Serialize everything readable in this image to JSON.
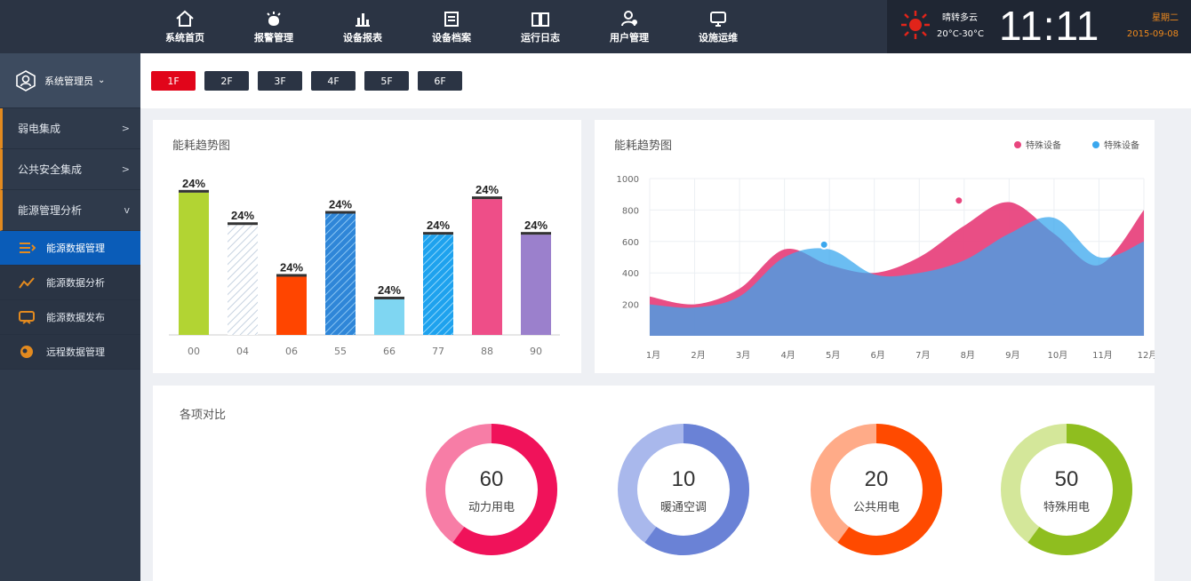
{
  "topnav": [
    {
      "label": "系统首页",
      "icon": "home-icon"
    },
    {
      "label": "报警管理",
      "icon": "alarm-icon"
    },
    {
      "label": "设备报表",
      "icon": "report-icon"
    },
    {
      "label": "设备档案",
      "icon": "archive-icon"
    },
    {
      "label": "运行日志",
      "icon": "log-icon"
    },
    {
      "label": "用户管理",
      "icon": "user-icon"
    },
    {
      "label": "设施运维",
      "icon": "maintenance-icon"
    }
  ],
  "weather": {
    "desc": "晴转多云",
    "temp": "20°C-30°C",
    "icon": "sun-icon"
  },
  "clock": {
    "time": "11:11",
    "weekday": "星期二",
    "date": "2015-09-08"
  },
  "sidebar": {
    "user": "系统管理员",
    "menu": [
      {
        "label": "弱电集成",
        "chevron": ">"
      },
      {
        "label": "公共安全集成",
        "chevron": ">"
      },
      {
        "label": "能源管理分析",
        "chevron": "v"
      }
    ],
    "sub": [
      {
        "label": "能源数据管理",
        "icon": "data-manage-icon"
      },
      {
        "label": "能源数据分析",
        "icon": "analysis-icon"
      },
      {
        "label": "能源数据发布",
        "icon": "publish-icon"
      },
      {
        "label": "远程数据管理",
        "icon": "remote-icon"
      }
    ]
  },
  "floors": [
    "1F",
    "2F",
    "3F",
    "4F",
    "5F",
    "6F"
  ],
  "bar_panel": {
    "title": "能耗趋势图"
  },
  "line_panel": {
    "title": "能耗趋势图",
    "legend": [
      "特殊设备",
      "特殊设备"
    ]
  },
  "compare_panel": {
    "title": "各项对比"
  },
  "colors": {
    "accent": "#e1051a",
    "nav": "#2b3444",
    "active_blue": "#0a5cb8"
  },
  "chart_data": [
    {
      "type": "bar",
      "title": "能耗趋势图",
      "categories": [
        "00",
        "04",
        "06",
        "55",
        "66",
        "77",
        "88",
        "90"
      ],
      "values": [
        88,
        68,
        36,
        75,
        22,
        62,
        84,
        62
      ],
      "data_labels": [
        "24%",
        "24%",
        "24%",
        "24%",
        "24%",
        "24%",
        "24%",
        "24%"
      ],
      "colors": [
        "#b2d433",
        "#dfe7f0",
        "#ff4500",
        "#3b8ee0",
        "#7fd6f2",
        "#2da4ee",
        "#ee4e88",
        "#9b80cc"
      ],
      "patterns": [
        "solid",
        "hatch-light",
        "solid",
        "hatch",
        "solid",
        "hatch",
        "solid",
        "solid"
      ],
      "ylim": [
        0,
        100
      ]
    },
    {
      "type": "area",
      "title": "能耗趋势图",
      "categories": [
        "1月",
        "2月",
        "3月",
        "4月",
        "5月",
        "6月",
        "7月",
        "8月",
        "9月",
        "10月",
        "11月",
        "12月"
      ],
      "y_ticks": [
        "1000",
        "800",
        "600",
        "400",
        "200"
      ],
      "ylim": [
        0,
        1000
      ],
      "series": [
        {
          "name": "特殊设备",
          "color": "#e8457e",
          "values": [
            250,
            200,
            300,
            550,
            450,
            400,
            500,
            700,
            850,
            650,
            450,
            800
          ]
        },
        {
          "name": "特殊设备",
          "color": "#3aa7ee",
          "values": [
            200,
            180,
            250,
            500,
            550,
            390,
            400,
            480,
            650,
            750,
            500,
            600
          ]
        }
      ],
      "markers": [
        {
          "series": 0,
          "x": "8月",
          "y": 860
        },
        {
          "series": 1,
          "x": "5月",
          "y": 580
        }
      ]
    },
    {
      "type": "pie",
      "title": "各项对比",
      "items": [
        {
          "value": "60",
          "label": "动力用电",
          "color": "#f0125a",
          "light": "#f77da6",
          "fraction": 0.6
        },
        {
          "value": "10",
          "label": "暖通空调",
          "color": "#6a82d6",
          "light": "#a9b8ec",
          "fraction": 0.1
        },
        {
          "value": "20",
          "label": "公共用电",
          "color": "#ff4a00",
          "light": "#ffab88",
          "fraction": 0.2
        },
        {
          "value": "50",
          "label": "特殊用电",
          "color": "#8fbe1f",
          "light": "#d4e79a",
          "fraction": 0.5
        }
      ]
    }
  ]
}
